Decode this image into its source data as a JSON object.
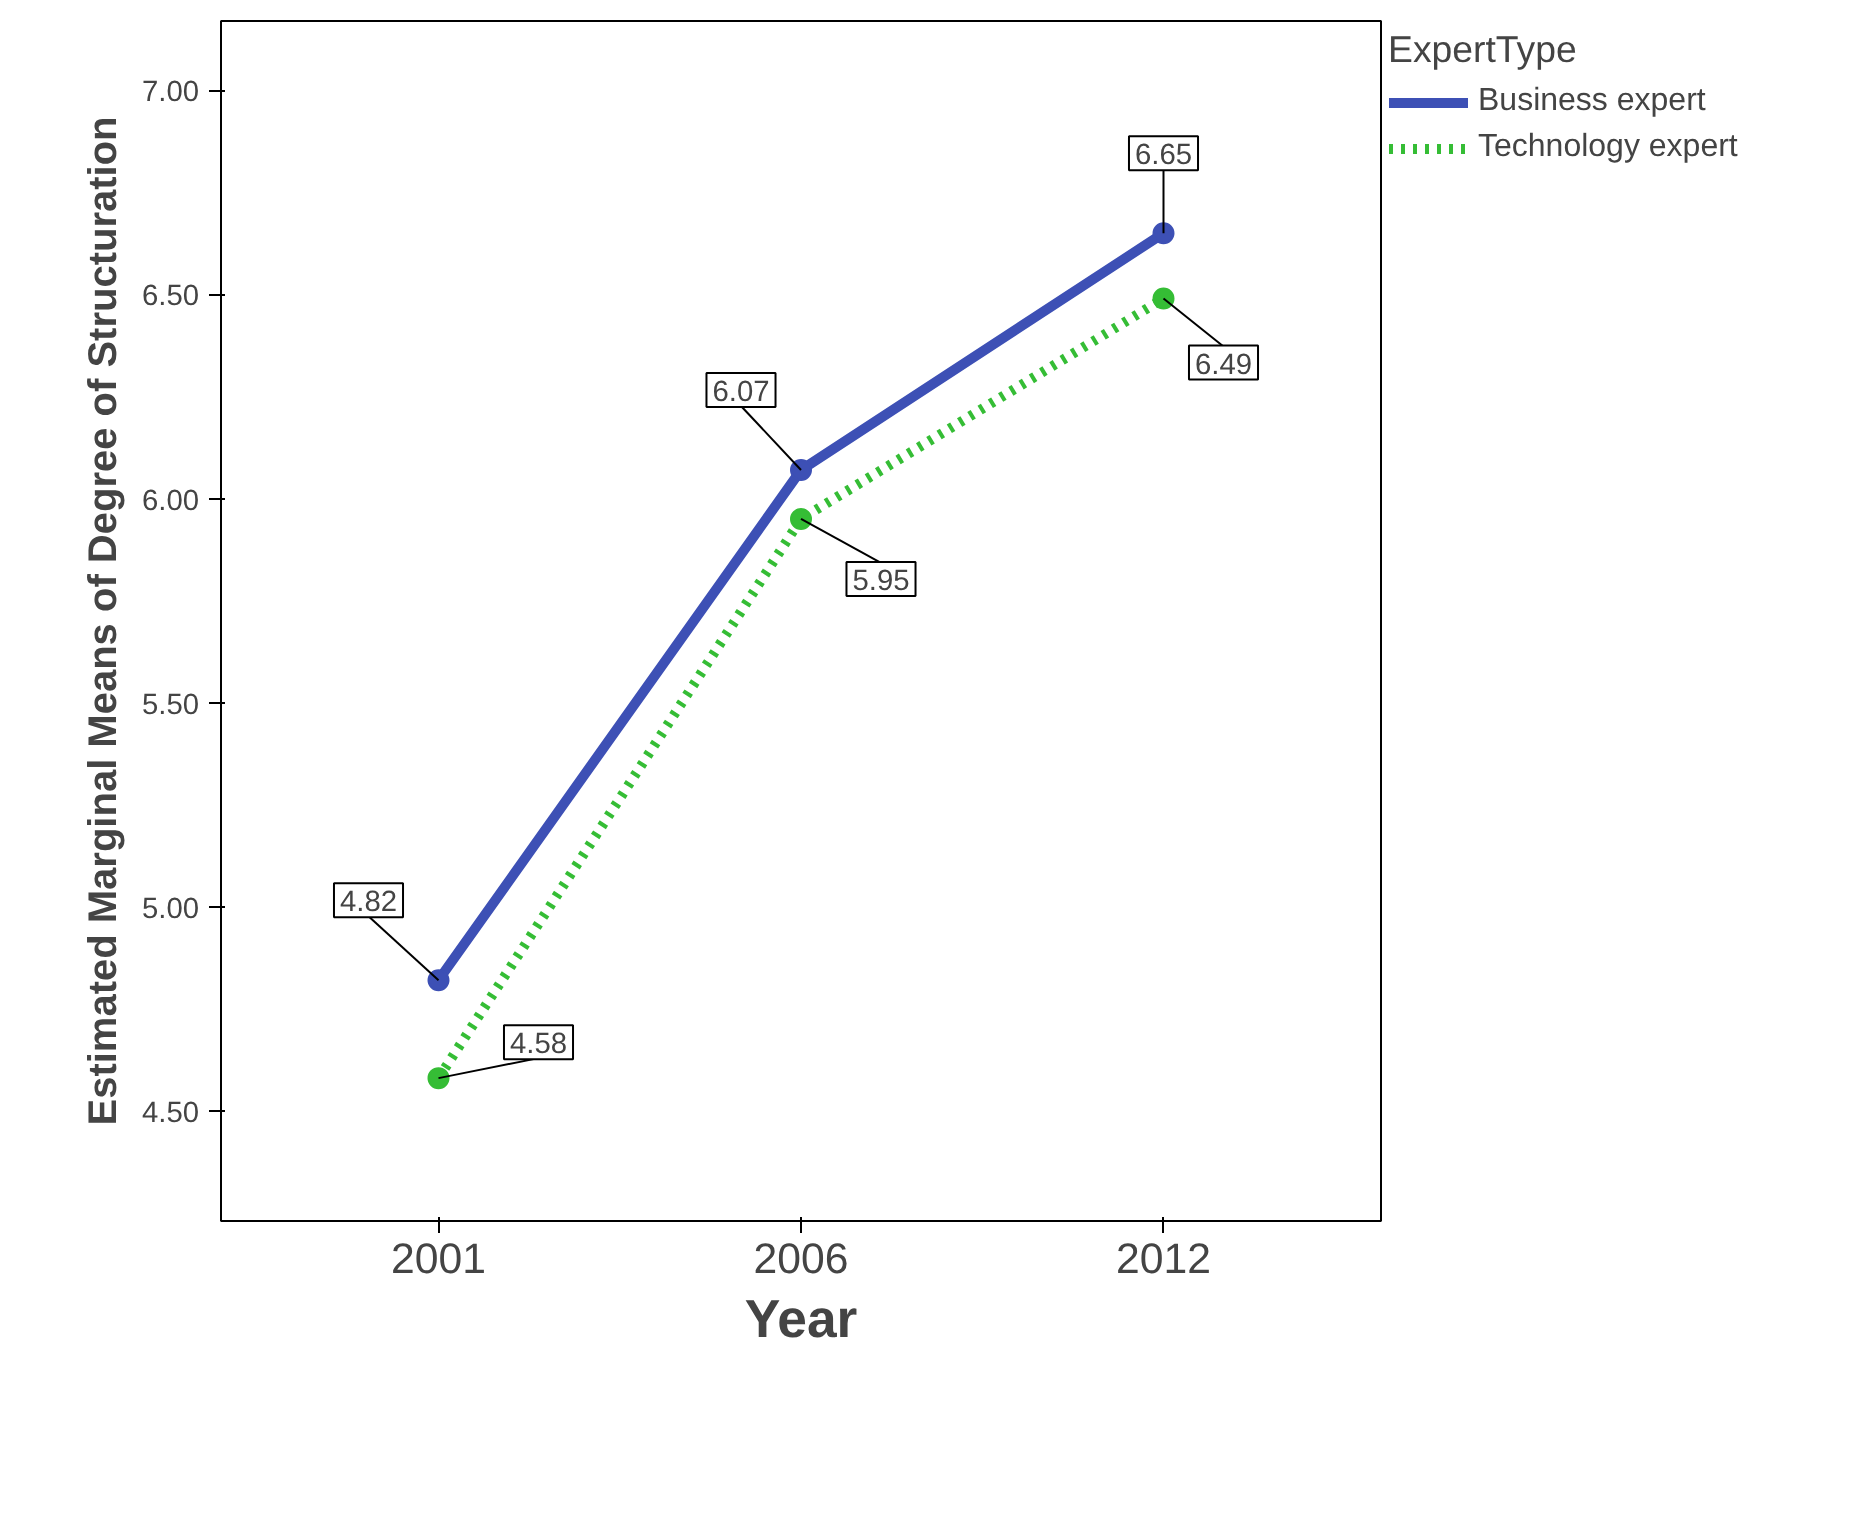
{
  "chart_data": {
    "type": "line",
    "xlabel": "Year",
    "ylabel": "Estimated Marginal Means of Degree of Structuration",
    "legend_title": "ExpertType",
    "categories": [
      "2001",
      "2006",
      "2012"
    ],
    "series": [
      {
        "name": "Business expert",
        "color": "#3d50b5",
        "line_style": "solid",
        "values": [
          4.82,
          6.07,
          6.65
        ]
      },
      {
        "name": "Technology expert",
        "color": "#35bd35",
        "line_style": "dotted",
        "values": [
          4.58,
          5.95,
          6.49
        ]
      }
    ],
    "ylim": [
      4.23,
      7.17
    ],
    "yticks": [
      {
        "value": 4.5,
        "label": "4.50"
      },
      {
        "value": 5.0,
        "label": "5.00"
      },
      {
        "value": 5.5,
        "label": "5.50"
      },
      {
        "value": 6.0,
        "label": "6.00"
      },
      {
        "value": 6.5,
        "label": "6.50"
      },
      {
        "value": 7.0,
        "label": "7.00"
      }
    ],
    "marker": "circle",
    "data_labels": true,
    "grid": false,
    "legend": "top right"
  }
}
